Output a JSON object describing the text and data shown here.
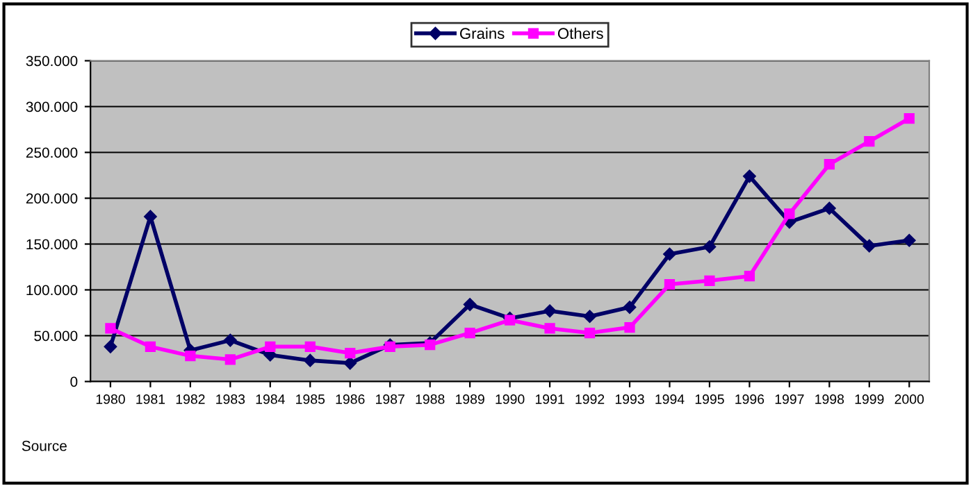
{
  "chart_data": {
    "type": "line",
    "categories": [
      "1980",
      "1981",
      "1982",
      "1983",
      "1984",
      "1985",
      "1986",
      "1987",
      "1988",
      "1989",
      "1990",
      "1991",
      "1992",
      "1993",
      "1994",
      "1995",
      "1996",
      "1997",
      "1998",
      "1999",
      "2000"
    ],
    "series": [
      {
        "name": "Grains",
        "color": "#000066",
        "marker": "diamond",
        "values": [
          38000,
          180000,
          34000,
          45000,
          29000,
          23000,
          20000,
          40000,
          42000,
          84000,
          69000,
          77000,
          71000,
          81000,
          139000,
          147000,
          224000,
          174000,
          189000,
          148000,
          154000
        ]
      },
      {
        "name": "Others",
        "color": "#ff00ff",
        "marker": "square",
        "values": [
          58000,
          38000,
          28000,
          24000,
          38000,
          38000,
          31000,
          38000,
          40000,
          53000,
          67000,
          58000,
          53000,
          59000,
          106000,
          110000,
          115000,
          183000,
          237000,
          262000,
          287000
        ]
      }
    ],
    "ylim": [
      0,
      350000
    ],
    "yticks": [
      {
        "value": 0,
        "label": "0"
      },
      {
        "value": 50000,
        "label": "50.000"
      },
      {
        "value": 100000,
        "label": "100.000"
      },
      {
        "value": 150000,
        "label": "150.000"
      },
      {
        "value": 200000,
        "label": "200.000"
      },
      {
        "value": 250000,
        "label": "250.000"
      },
      {
        "value": 300000,
        "label": "300.000"
      },
      {
        "value": 350000,
        "label": "350.000"
      }
    ],
    "grid": "y",
    "legend": "top",
    "line_style": "solid",
    "annotations": [
      "Source"
    ]
  }
}
